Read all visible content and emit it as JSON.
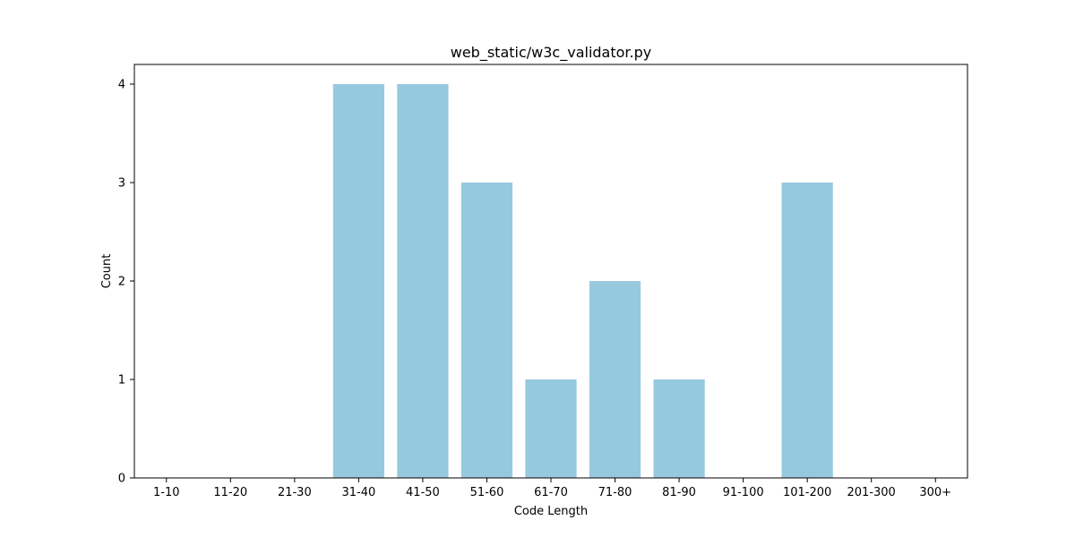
{
  "chart_data": {
    "type": "bar",
    "title": "web_static/w3c_validator.py",
    "xlabel": "Code Length",
    "ylabel": "Count",
    "categories": [
      "1-10",
      "11-20",
      "21-30",
      "31-40",
      "41-50",
      "51-60",
      "61-70",
      "71-80",
      "81-90",
      "91-100",
      "101-200",
      "201-300",
      "300+"
    ],
    "values": [
      0,
      0,
      0,
      4,
      4,
      3,
      1,
      2,
      1,
      0,
      3,
      0,
      0
    ],
    "ylim": [
      0,
      4.2
    ],
    "yticks": [
      0,
      1,
      2,
      3,
      4
    ],
    "grid": false,
    "bar_color": "#96c9de"
  }
}
